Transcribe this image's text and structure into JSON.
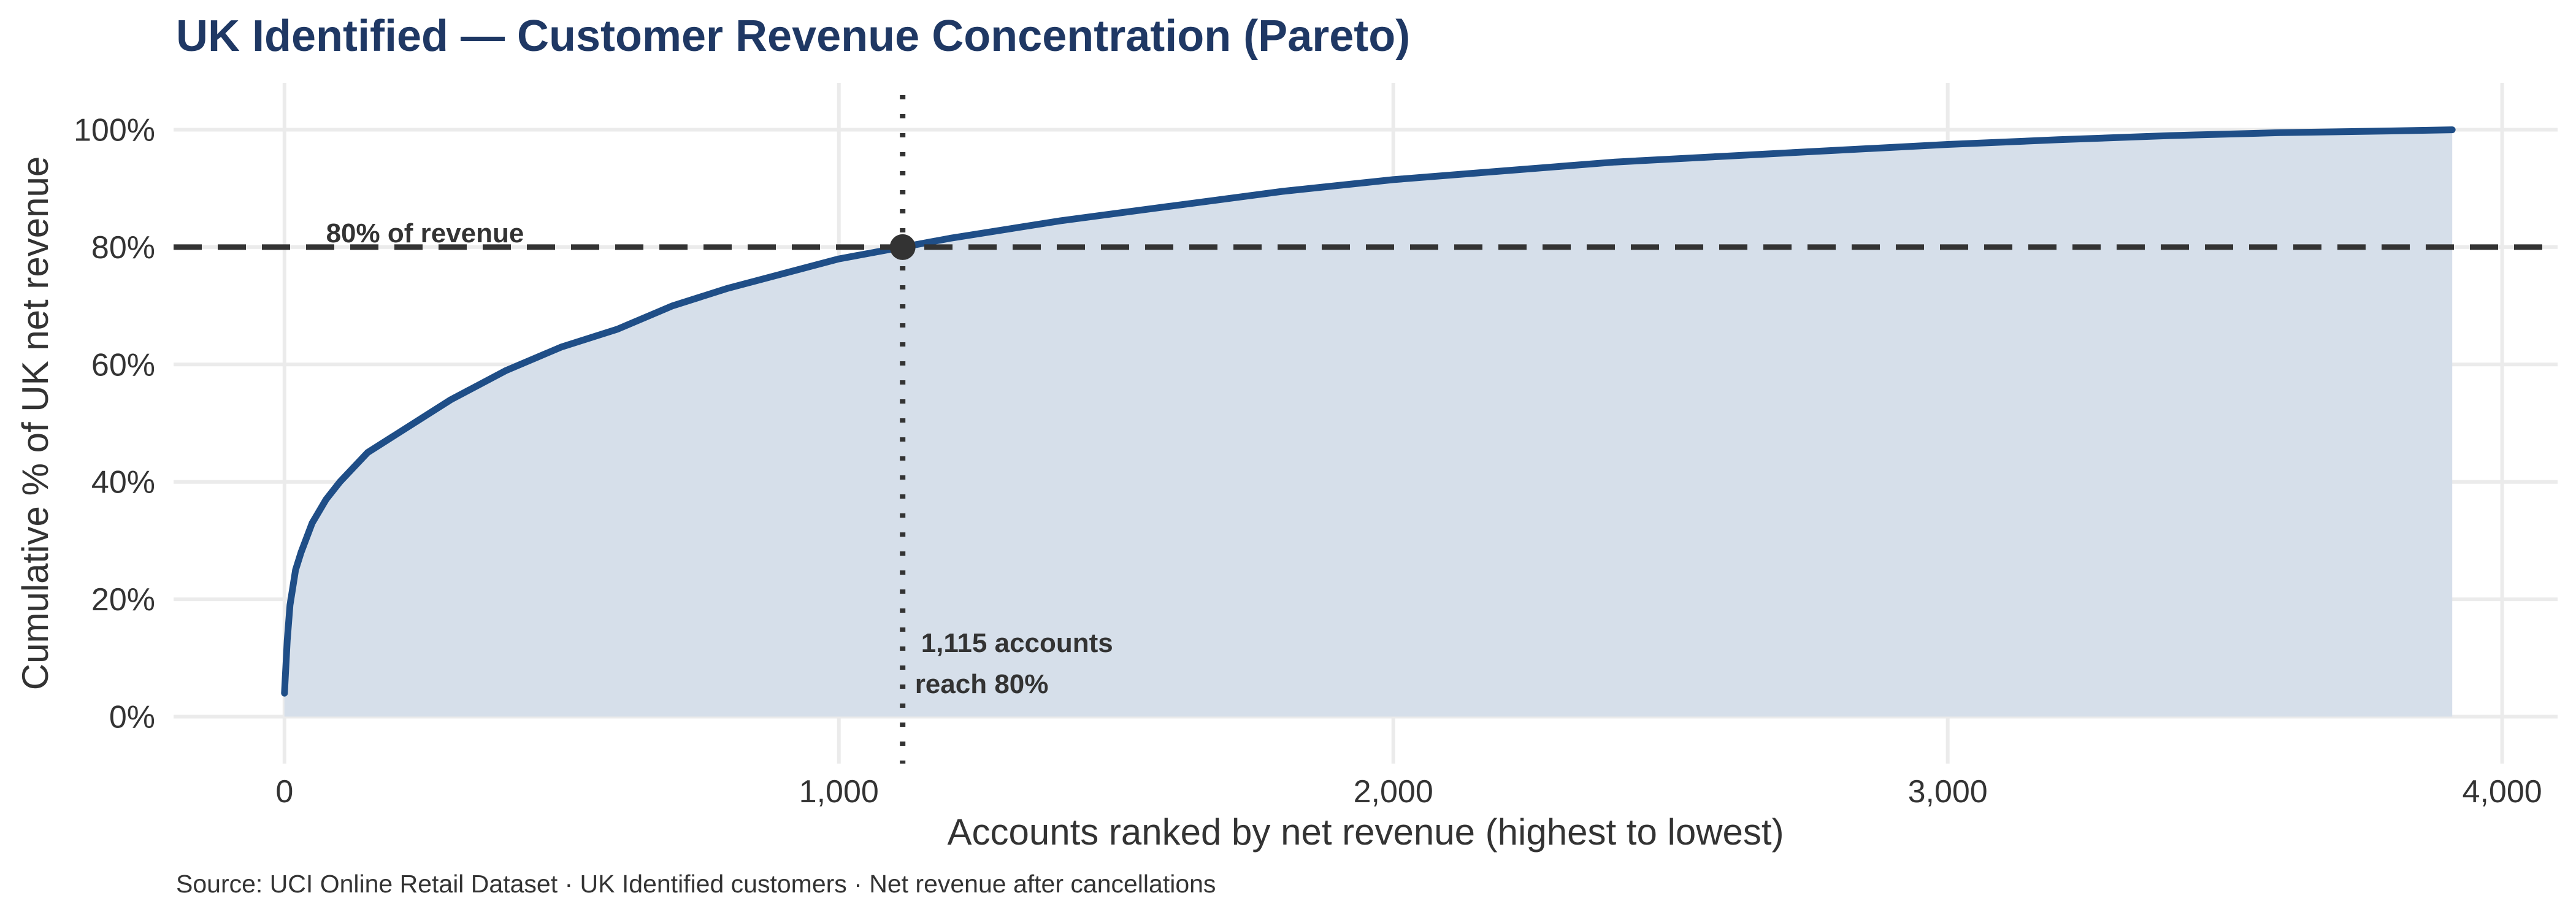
{
  "chart_data": {
    "type": "area",
    "title": "UK Identified — Customer Revenue Concentration (Pareto)",
    "xlabel": "Accounts ranked by net revenue (highest to lowest)",
    "ylabel": "Cumulative % of UK net revenue",
    "xlim": [
      -200,
      4100
    ],
    "ylim": [
      -0.08,
      1.08
    ],
    "x_ticks": [
      0,
      1000,
      2000,
      3000,
      4000
    ],
    "x_tick_labels": [
      "0",
      "1,000",
      "2,000",
      "3,000",
      "4,000"
    ],
    "y_ticks": [
      0,
      0.2,
      0.4,
      0.6,
      0.8,
      1.0
    ],
    "y_tick_labels": [
      "0%",
      "20%",
      "40%",
      "60%",
      "80%",
      "100%"
    ],
    "grid": true,
    "legend": "none",
    "series": [
      {
        "x": [
          0,
          5,
          10,
          20,
          30,
          50,
          75,
          100,
          150,
          200,
          300,
          400,
          500,
          600,
          700,
          800,
          900,
          1000,
          1115,
          1200,
          1400,
          1600,
          1800,
          2000,
          2200,
          2400,
          2600,
          2800,
          3000,
          3200,
          3400,
          3600,
          3800,
          3910
        ],
        "y": [
          0.04,
          0.13,
          0.19,
          0.25,
          0.28,
          0.33,
          0.37,
          0.4,
          0.45,
          0.48,
          0.54,
          0.59,
          0.63,
          0.66,
          0.7,
          0.73,
          0.755,
          0.78,
          0.8,
          0.815,
          0.845,
          0.87,
          0.895,
          0.915,
          0.93,
          0.945,
          0.955,
          0.965,
          0.975,
          0.983,
          0.99,
          0.995,
          0.998,
          1.0
        ]
      }
    ],
    "colors": {
      "line": "#1f4e87",
      "area": "#d6dfea",
      "reference": "#333333",
      "title": "#1f3864"
    },
    "reference_lines": {
      "horizontal_y": 0.8,
      "horizontal_label": "80% of revenue",
      "vertical_x": 1115
    },
    "highlight_point": {
      "x": 1115,
      "y": 0.8
    },
    "annotation": {
      "line1": "1,115 accounts",
      "line2": "reach 80%"
    },
    "caption": "Source: UCI Online Retail Dataset · UK Identified customers · Net revenue after cancellations"
  }
}
